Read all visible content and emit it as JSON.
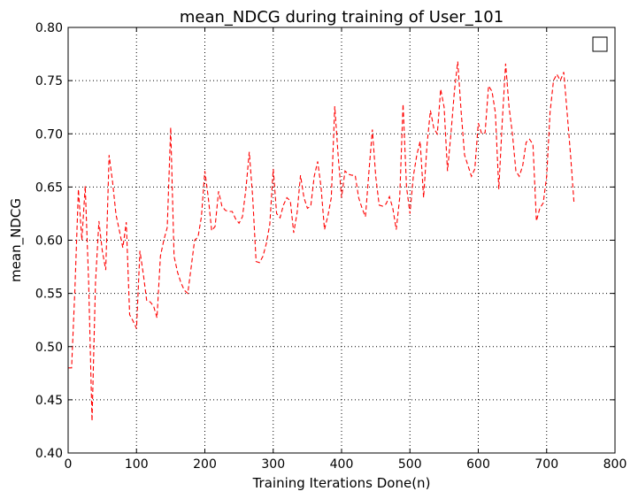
{
  "chart_data": {
    "type": "line",
    "title": "mean_NDCG during training of User_101",
    "xlabel": "Training Iterations Done(n)",
    "ylabel": "mean_NDCG",
    "xlim": [
      0,
      800
    ],
    "ylim": [
      0.4,
      0.8
    ],
    "xticks": [
      0,
      100,
      200,
      300,
      400,
      500,
      600,
      700,
      800
    ],
    "yticks": [
      0.4,
      0.45,
      0.5,
      0.55,
      0.6,
      0.65,
      0.7,
      0.75,
      0.8
    ],
    "xtick_labels": [
      "0",
      "100",
      "200",
      "300",
      "400",
      "500",
      "600",
      "700",
      "800"
    ],
    "ytick_labels": [
      "0.40",
      "0.45",
      "0.50",
      "0.55",
      "0.60",
      "0.65",
      "0.70",
      "0.75",
      "0.80"
    ],
    "grid": true,
    "legend": "top-right",
    "colors": {
      "line": "#ff0000",
      "frame": "#000000",
      "grid": "#000000"
    },
    "series": [
      {
        "line_style": "dashed",
        "x": [
          0,
          5,
          10,
          15,
          20,
          25,
          30,
          35,
          40,
          45,
          50,
          55,
          60,
          65,
          70,
          75,
          80,
          85,
          90,
          95,
          100,
          105,
          110,
          115,
          120,
          125,
          130,
          135,
          140,
          145,
          150,
          155,
          160,
          165,
          170,
          175,
          180,
          185,
          190,
          195,
          200,
          205,
          210,
          215,
          220,
          225,
          230,
          235,
          240,
          245,
          250,
          255,
          260,
          265,
          270,
          275,
          280,
          285,
          290,
          295,
          300,
          305,
          310,
          315,
          320,
          325,
          330,
          335,
          340,
          345,
          350,
          355,
          360,
          365,
          370,
          375,
          380,
          385,
          390,
          395,
          400,
          405,
          410,
          415,
          420,
          425,
          430,
          435,
          440,
          445,
          450,
          455,
          460,
          465,
          470,
          475,
          480,
          485,
          490,
          495,
          500,
          505,
          510,
          515,
          520,
          525,
          530,
          535,
          540,
          545,
          550,
          555,
          560,
          565,
          570,
          575,
          580,
          585,
          590,
          595,
          600,
          605,
          610,
          615,
          620,
          625,
          630,
          635,
          640,
          645,
          650,
          655,
          660,
          665,
          670,
          675,
          680,
          685,
          690,
          695,
          700,
          705,
          710,
          715,
          720,
          725,
          730,
          735,
          740
        ],
        "y": [
          0.48,
          0.48,
          0.555,
          0.648,
          0.6,
          0.651,
          0.56,
          0.43,
          0.56,
          0.618,
          0.59,
          0.572,
          0.68,
          0.655,
          0.624,
          0.609,
          0.593,
          0.617,
          0.53,
          0.524,
          0.517,
          0.59,
          0.568,
          0.543,
          0.542,
          0.538,
          0.527,
          0.585,
          0.6,
          0.612,
          0.706,
          0.585,
          0.57,
          0.56,
          0.553,
          0.55,
          0.575,
          0.6,
          0.603,
          0.622,
          0.665,
          0.64,
          0.609,
          0.613,
          0.646,
          0.632,
          0.628,
          0.627,
          0.627,
          0.62,
          0.616,
          0.622,
          0.648,
          0.683,
          0.64,
          0.58,
          0.579,
          0.585,
          0.597,
          0.615,
          0.667,
          0.625,
          0.621,
          0.633,
          0.64,
          0.637,
          0.607,
          0.626,
          0.661,
          0.64,
          0.63,
          0.632,
          0.66,
          0.674,
          0.65,
          0.61,
          0.623,
          0.64,
          0.726,
          0.68,
          0.64,
          0.665,
          0.662,
          0.661,
          0.661,
          0.64,
          0.63,
          0.622,
          0.664,
          0.704,
          0.66,
          0.633,
          0.632,
          0.634,
          0.641,
          0.63,
          0.61,
          0.64,
          0.728,
          0.65,
          0.625,
          0.66,
          0.68,
          0.693,
          0.64,
          0.69,
          0.722,
          0.705,
          0.7,
          0.742,
          0.725,
          0.665,
          0.7,
          0.74,
          0.768,
          0.72,
          0.68,
          0.67,
          0.66,
          0.667,
          0.71,
          0.7,
          0.701,
          0.745,
          0.74,
          0.72,
          0.648,
          0.71,
          0.766,
          0.725,
          0.7,
          0.665,
          0.66,
          0.67,
          0.692,
          0.695,
          0.69,
          0.618,
          0.63,
          0.635,
          0.66,
          0.72,
          0.75,
          0.756,
          0.75,
          0.758,
          0.72,
          0.68,
          0.636
        ]
      }
    ]
  }
}
